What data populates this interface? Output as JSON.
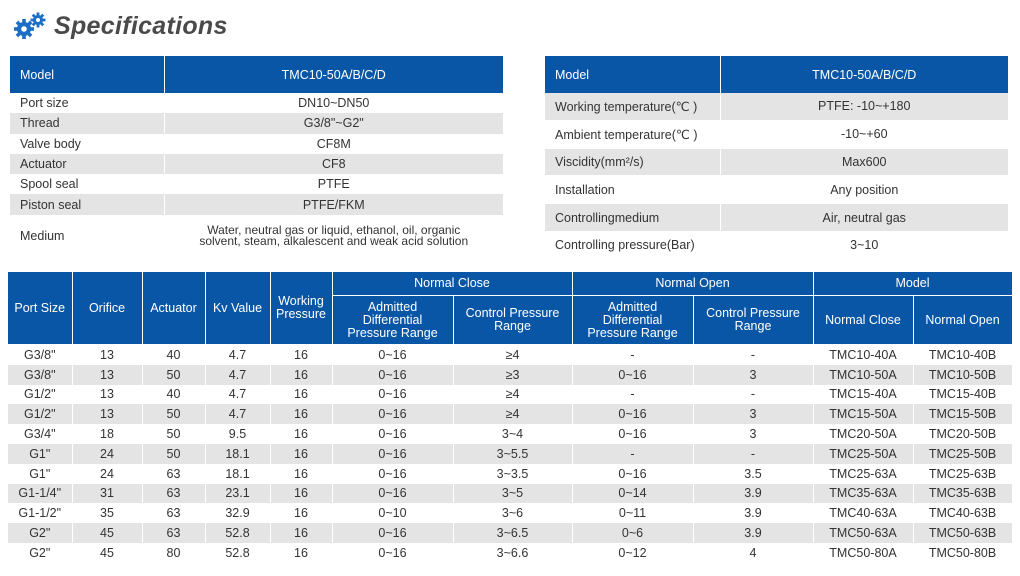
{
  "title": "Specifications",
  "spec_left": {
    "header": {
      "label": "Model",
      "value": "TMC10-50A/B/C/D"
    },
    "rows": [
      {
        "label": "Port size",
        "value": "DN10~DN50"
      },
      {
        "label": "Thread",
        "value": "G3/8\"~G2\""
      },
      {
        "label": "Valve body",
        "value": "CF8M"
      },
      {
        "label": "Actuator",
        "value": "CF8"
      },
      {
        "label": "Spool seal",
        "value": "PTFE"
      },
      {
        "label": "Piston seal",
        "value": "PTFE/FKM"
      }
    ],
    "medium": {
      "label": "Medium",
      "line1": "Water, neutral gas or liquid, ethanol, oil, organic",
      "line2": "solvent, steam, alkalescent and weak acid solution"
    }
  },
  "spec_right": {
    "header": {
      "label": "Model",
      "value": "TMC10-50A/B/C/D"
    },
    "rows": [
      {
        "label": "Working temperature(℃ )",
        "value": "PTFE: -10~+180"
      },
      {
        "label": "Ambient temperature(℃ )",
        "value": "-10~+60"
      },
      {
        "label": "Viscidity(mm²/s)",
        "value": "Max600"
      },
      {
        "label": "Installation",
        "value": "Any position"
      },
      {
        "label": "Controllingmedium",
        "value": "Air, neutral gas"
      },
      {
        "label": "Controlling pressure(Bar)",
        "value": "3~10"
      }
    ]
  },
  "main_table": {
    "headers": {
      "port_size": "Port Size",
      "orifice": "Orifice",
      "actuator": "Actuator",
      "kv_value": "Kv Value",
      "working_pressure_1": "Working",
      "working_pressure_2": "Pressure",
      "normal_close": "Normal Close",
      "normal_open": "Normal Open",
      "model": "Model",
      "nc_admitted_1": "Admitted",
      "nc_admitted_2": "Differential",
      "nc_admitted_3": "Pressure Range",
      "nc_control_1": "Control Pressure",
      "nc_control_2": "Range",
      "no_admitted_1": "Admitted",
      "no_admitted_2": "Differential",
      "no_admitted_3": "Pressure Range",
      "no_control_1": "Control Pressure",
      "no_control_2": "Range",
      "model_nc": "Normal Close",
      "model_no": "Normal Open"
    },
    "rows": [
      [
        "G3/8\"",
        "13",
        "40",
        "4.7",
        "16",
        "0~16",
        "≥4",
        "-",
        "-",
        "TMC10-40A",
        "TMC10-40B"
      ],
      [
        "G3/8\"",
        "13",
        "50",
        "4.7",
        "16",
        "0~16",
        "≥3",
        "0~16",
        "3",
        "TMC10-50A",
        "TMC10-50B"
      ],
      [
        "G1/2\"",
        "13",
        "40",
        "4.7",
        "16",
        "0~16",
        "≥4",
        "-",
        "-",
        "TMC15-40A",
        "TMC15-40B"
      ],
      [
        "G1/2\"",
        "13",
        "50",
        "4.7",
        "16",
        "0~16",
        "≥4",
        "0~16",
        "3",
        "TMC15-50A",
        "TMC15-50B"
      ],
      [
        "G3/4\"",
        "18",
        "50",
        "9.5",
        "16",
        "0~16",
        "3~4",
        "0~16",
        "3",
        "TMC20-50A",
        "TMC20-50B"
      ],
      [
        "G1\"",
        "24",
        "50",
        "18.1",
        "16",
        "0~16",
        "3~5.5",
        "-",
        "-",
        "TMC25-50A",
        "TMC25-50B"
      ],
      [
        "G1\"",
        "24",
        "63",
        "18.1",
        "16",
        "0~16",
        "3~3.5",
        "0~16",
        "3.5",
        "TMC25-63A",
        "TMC25-63B"
      ],
      [
        "G1-1/4\"",
        "31",
        "63",
        "23.1",
        "16",
        "0~16",
        "3~5",
        "0~14",
        "3.9",
        "TMC35-63A",
        "TMC35-63B"
      ],
      [
        "G1-1/2\"",
        "35",
        "63",
        "32.9",
        "16",
        "0~10",
        "3~6",
        "0~11",
        "3.9",
        "TMC40-63A",
        "TMC40-63B"
      ],
      [
        "G2\"",
        "45",
        "63",
        "52.8",
        "16",
        "0~16",
        "3~6.5",
        "0~6",
        "3.9",
        "TMC50-63A",
        "TMC50-63B"
      ],
      [
        "G2\"",
        "45",
        "80",
        "52.8",
        "16",
        "0~16",
        "3~6.6",
        "0~12",
        "4",
        "TMC50-80A",
        "TMC50-80B"
      ]
    ]
  },
  "colors": {
    "header_blue": "#0a56a6",
    "stripe_gray": "#e4e4e4",
    "title_gray": "#4a4a4a",
    "icon_blue": "#1c6fc4"
  },
  "icons": {
    "title_icon": "gears-icon"
  }
}
